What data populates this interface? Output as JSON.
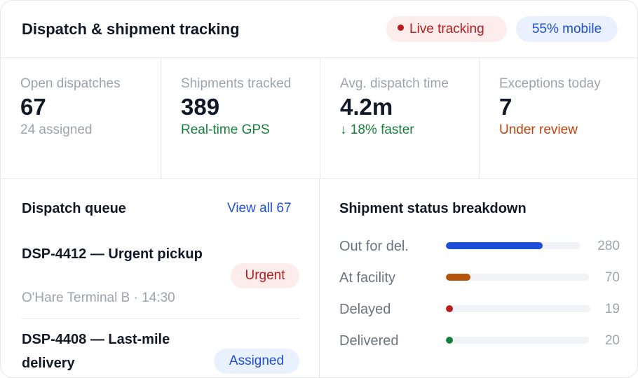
{
  "header": {
    "title": "Dispatch & shipment tracking",
    "live_label": "Live tracking",
    "mobile_label": "55% mobile"
  },
  "stats": [
    {
      "label": "Open dispatches",
      "value": "67",
      "sub": "24 assigned"
    },
    {
      "label": "Shipments tracked",
      "value": "389",
      "sub": "Real-time GPS"
    },
    {
      "label": "Avg. dispatch time",
      "value": "4.2m",
      "sub": "↓ 18% faster"
    },
    {
      "label": "Exceptions today",
      "value": "7",
      "sub": "Under review"
    }
  ],
  "queue": {
    "title": "Dispatch queue",
    "view_all": "View all 67",
    "items": [
      {
        "title": "DSP-4412 — Urgent pickup",
        "meta": "O'Hare Terminal B · 14:30",
        "badge": "Urgent"
      },
      {
        "title": "DSP-4408 — Last-mile delivery",
        "badge": "Assigned"
      }
    ]
  },
  "status": {
    "title": "Shipment status breakdown",
    "max": 280,
    "rows": [
      {
        "label": "Out for del.",
        "count": 280,
        "color": "#1d4ed8"
      },
      {
        "label": "At facility",
        "count": 70,
        "color": "#b45309"
      },
      {
        "label": "Delayed",
        "count": 19,
        "color": "#b91c1c"
      },
      {
        "label": "Delivered",
        "count": 20,
        "color": "#15803d"
      }
    ]
  },
  "colors": {
    "accent_blue": "#1d4ed8",
    "alert_red": "#b91c1c",
    "success_green": "#15803d",
    "warning_orange": "#c2410c"
  }
}
